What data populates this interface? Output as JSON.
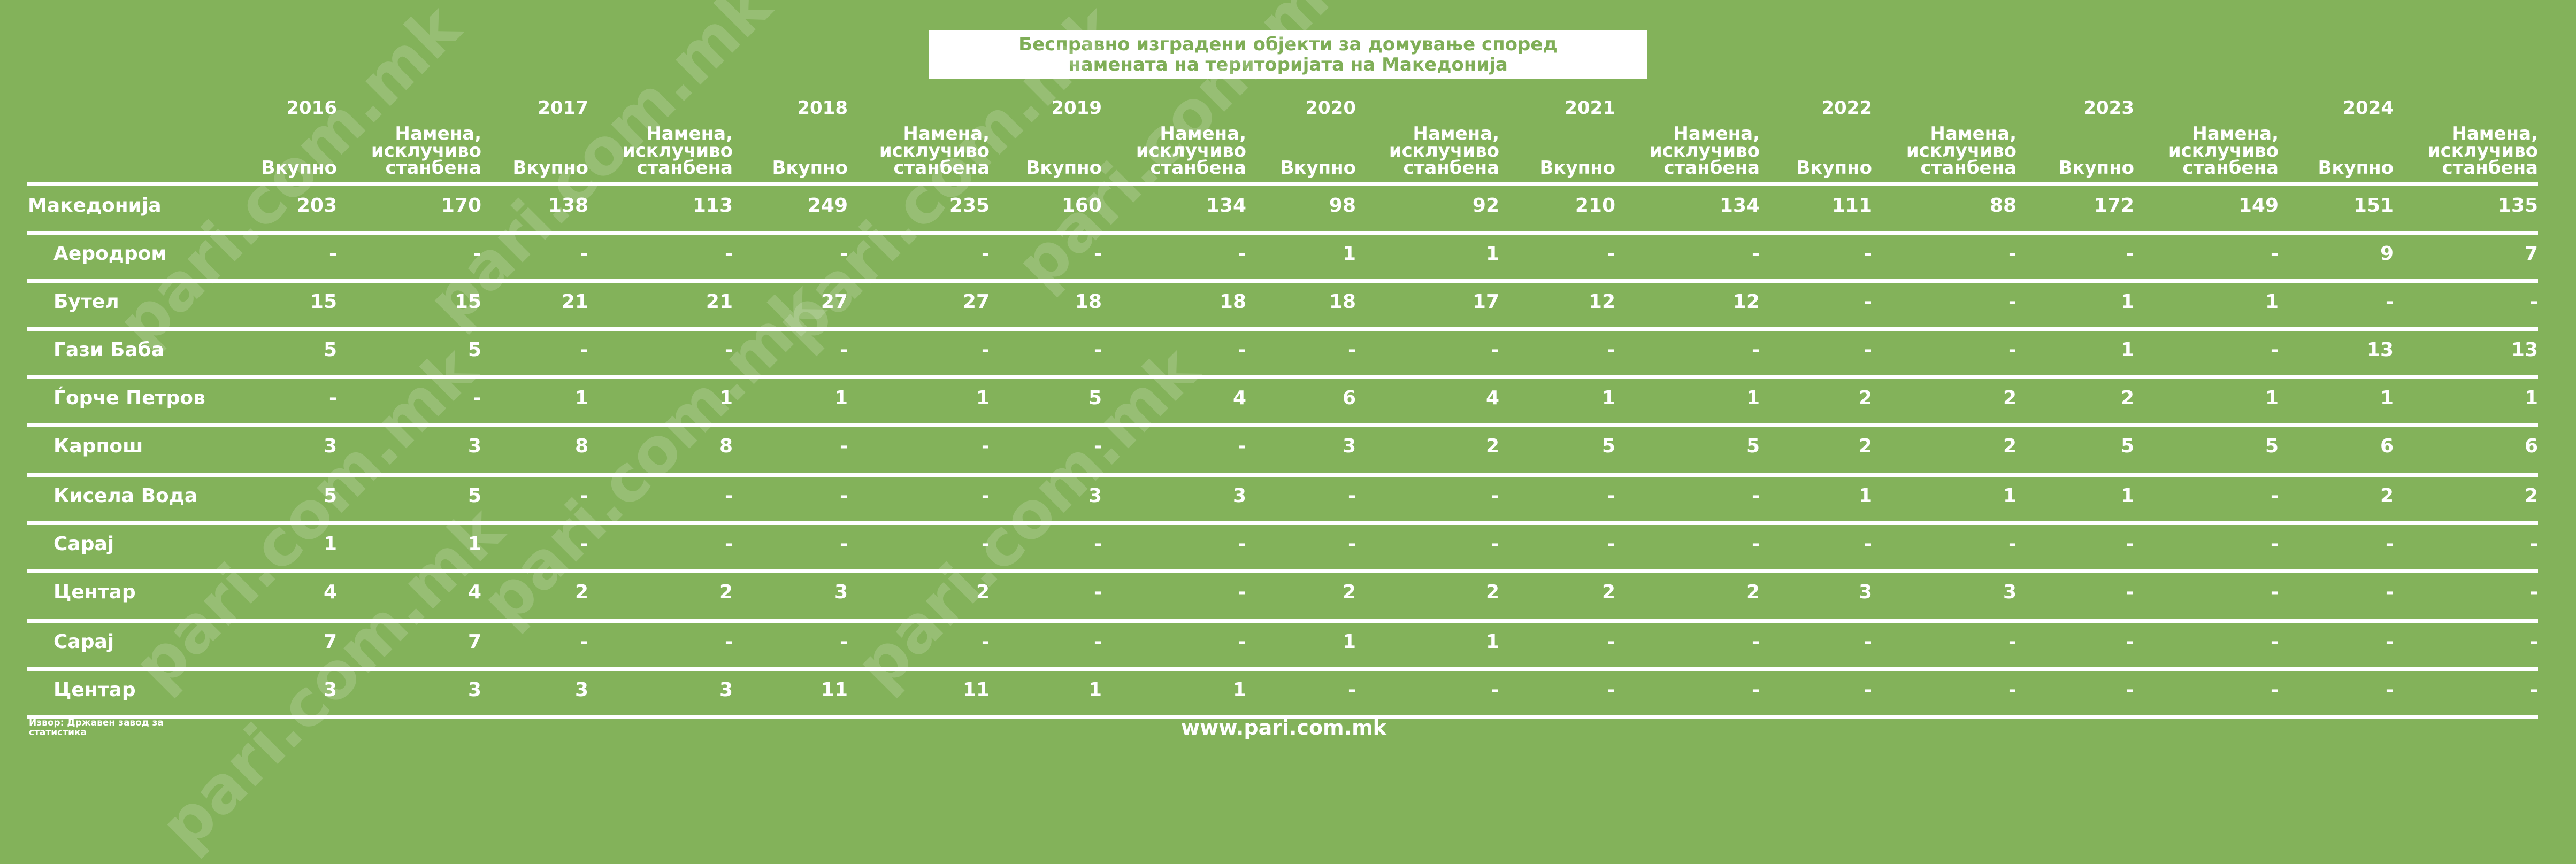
{
  "chart_data": {
    "type": "table",
    "title": [
      "Бесправно изградени објекти за домување според",
      "намената на територијата на Македонија"
    ],
    "years": [
      "2016",
      "2017",
      "2018",
      "2019",
      "2020",
      "2021",
      "2022",
      "2023",
      "2024"
    ],
    "subcolumns": [
      [
        "Вкупно"
      ],
      [
        "Намена,",
        "исклучиво",
        "станбена"
      ]
    ],
    "rows": [
      {
        "label": "Македонија",
        "values": [
          "203",
          "170",
          "138",
          "113",
          "249",
          "235",
          "160",
          "134",
          "98",
          "92",
          "210",
          "134",
          "111",
          "88",
          "172",
          "149",
          "151",
          "135"
        ]
      },
      {
        "label": "Аеродром",
        "values": [
          "-",
          "-",
          "-",
          "-",
          "-",
          "-",
          "-",
          "-",
          "1",
          "1",
          "-",
          "-",
          "-",
          "-",
          "-",
          "-",
          "9",
          "7"
        ]
      },
      {
        "label": "Бутел",
        "values": [
          "15",
          "15",
          "21",
          "21",
          "27",
          "27",
          "18",
          "18",
          "18",
          "17",
          "12",
          "12",
          "-",
          "-",
          "1",
          "1",
          "-",
          "-"
        ]
      },
      {
        "label": "Гази Баба",
        "values": [
          "5",
          "5",
          "-",
          "-",
          "-",
          "-",
          "-",
          "-",
          "-",
          "-",
          "-",
          "-",
          "-",
          "-",
          "1",
          "-",
          "13",
          "13"
        ]
      },
      {
        "label": "Ѓорче Петров",
        "values": [
          "-",
          "-",
          "1",
          "1",
          "1",
          "1",
          "5",
          "4",
          "6",
          "4",
          "1",
          "1",
          "2",
          "2",
          "2",
          "1",
          "1",
          "1"
        ]
      },
      {
        "label": "Карпош",
        "values": [
          "3",
          "3",
          "8",
          "8",
          "-",
          "-",
          "-",
          "-",
          "3",
          "2",
          "5",
          "5",
          "2",
          "2",
          "5",
          "5",
          "6",
          "6"
        ]
      },
      {
        "label": "Кисела Вода",
        "values": [
          "5",
          "5",
          "-",
          "-",
          "-",
          "-",
          "3",
          "3",
          "-",
          "-",
          "-",
          "-",
          "1",
          "1",
          "1",
          "-",
          "2",
          "2"
        ]
      },
      {
        "label": "Сарај",
        "values": [
          "1",
          "1",
          "-",
          "-",
          "-",
          "-",
          "-",
          "-",
          "-",
          "-",
          "-",
          "-",
          "-",
          "-",
          "-",
          "-",
          "-",
          "-"
        ]
      },
      {
        "label": "Центар",
        "values": [
          "4",
          "4",
          "2",
          "2",
          "3",
          "2",
          "-",
          "-",
          "2",
          "2",
          "2",
          "2",
          "3",
          "3",
          "-",
          "-",
          "-",
          "-"
        ]
      },
      {
        "label": "Сарај",
        "values": [
          "7",
          "7",
          "-",
          "-",
          "-",
          "-",
          "-",
          "-",
          "1",
          "1",
          "-",
          "-",
          "-",
          "-",
          "-",
          "-",
          "-",
          "-"
        ]
      },
      {
        "label": "Центар",
        "values": [
          "3",
          "3",
          "3",
          "3",
          "11",
          "11",
          "1",
          "1",
          "-",
          "-",
          "-",
          "-",
          "-",
          "-",
          "-",
          "-",
          "-",
          "-"
        ]
      }
    ],
    "source": [
      "Извор: Државен завод за",
      "статистика"
    ],
    "website": "www.pari.com.mk",
    "watermark": "pari.com.mk",
    "colors": {
      "background": "#83b25a",
      "text": "#ffffff",
      "title": "#7fae57"
    }
  }
}
